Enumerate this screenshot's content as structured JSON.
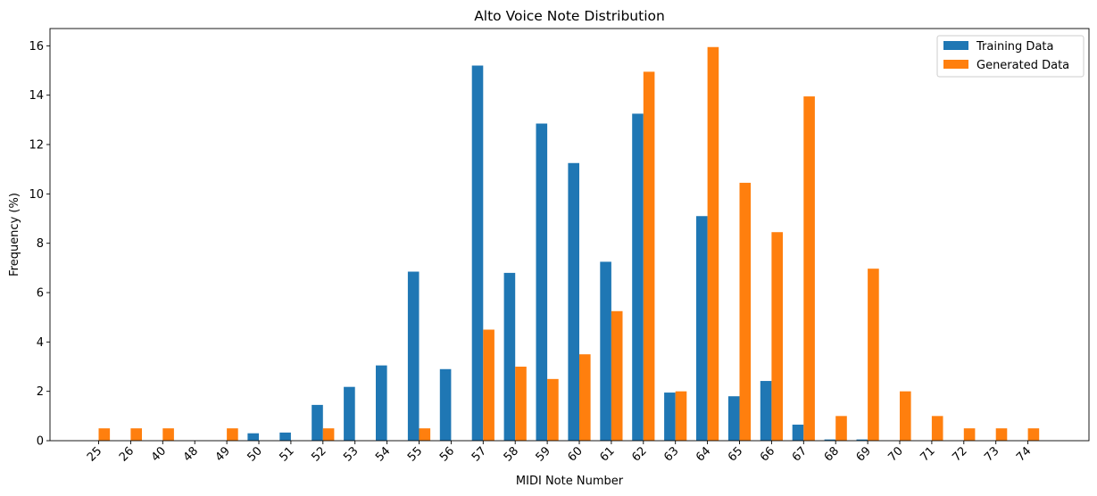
{
  "chart_data": {
    "type": "bar",
    "title": "Alto Voice Note Distribution",
    "xlabel": "MIDI Note Number",
    "ylabel": "Frequency (%)",
    "ylim": [
      0,
      16.7
    ],
    "yticks": [
      0,
      2,
      4,
      6,
      8,
      10,
      12,
      14,
      16
    ],
    "grid": false,
    "legend_position": "top-right",
    "categories": [
      "25",
      "26",
      "40",
      "48",
      "49",
      "50",
      "51",
      "52",
      "53",
      "54",
      "55",
      "56",
      "57",
      "58",
      "59",
      "60",
      "61",
      "62",
      "63",
      "64",
      "65",
      "66",
      "67",
      "68",
      "69",
      "70",
      "71",
      "72",
      "73",
      "74"
    ],
    "series": [
      {
        "name": "Training Data",
        "color": "#1f77b4",
        "values": [
          0,
          0,
          0,
          0,
          0,
          0.3,
          0.33,
          1.45,
          2.18,
          3.05,
          6.85,
          2.9,
          15.2,
          6.8,
          12.85,
          11.25,
          7.25,
          13.25,
          1.95,
          9.1,
          1.8,
          2.42,
          0.65,
          0.05,
          0.05,
          0,
          0,
          0,
          0,
          0
        ]
      },
      {
        "name": "Generated Data",
        "color": "#ff7f0e",
        "values": [
          0.5,
          0.5,
          0.5,
          0,
          0.5,
          0,
          0,
          0.5,
          0,
          0,
          0.5,
          0,
          4.5,
          3.0,
          2.5,
          3.5,
          5.25,
          14.95,
          2.0,
          15.95,
          10.45,
          8.45,
          13.95,
          1.0,
          6.97,
          2.0,
          1.0,
          0.5,
          0.5,
          0.5
        ]
      }
    ]
  }
}
